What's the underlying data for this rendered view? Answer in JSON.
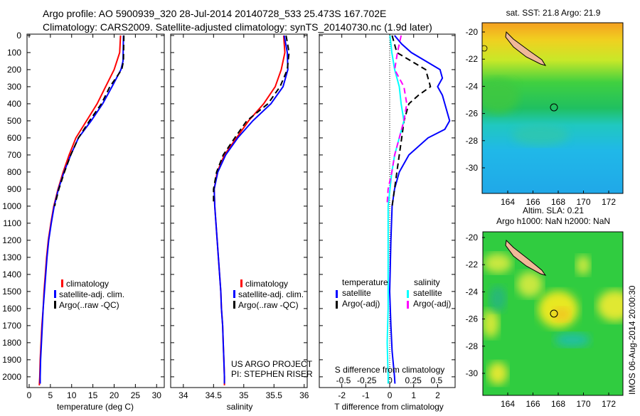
{
  "title": {
    "line1": "Argo profile: AO 5900939_320 28-Jul-2014 20140728_533 25.473S 167.702E",
    "line2": "Climatology: CARS2009. Satellite-adjusted climatology: synTS_20140730.nc (1.9d later)"
  },
  "depth_ticks": [
    "0",
    "100",
    "200",
    "300",
    "400",
    "500",
    "600",
    "700",
    "800",
    "900",
    "1000",
    "1100",
    "1200",
    "1300",
    "1400",
    "1500",
    "1600",
    "1700",
    "1800",
    "1900",
    "2000"
  ],
  "colors": {
    "climatology": "#ff0000",
    "satellite": "#0000ff",
    "argo": "#000000",
    "sal_satellite": "#00ffff",
    "sal_argo": "#ff00ff"
  },
  "project": {
    "line1": "US ARGO PROJECT",
    "line2": "PI: STEPHEN RISER"
  },
  "chart_data": [
    {
      "type": "line",
      "name": "temperature",
      "xlabel": "temperature (deg C)",
      "ylabel": "depth",
      "xlim": [
        -0.5,
        31.8
      ],
      "ylim": [
        -8,
        2063
      ],
      "xticks": [
        0,
        5,
        10,
        15,
        20,
        25,
        30
      ],
      "xtick_labels": [
        "0",
        "5",
        "10",
        "15",
        "20",
        "25",
        "30"
      ],
      "legend": [
        "climatology",
        "satellite-adj. clim.",
        "Argo(..raw -QC)"
      ],
      "series": [
        {
          "name": "climatology",
          "color": "#ff0000",
          "dash": false,
          "points": [
            [
              21.5,
              0
            ],
            [
              21.3,
              100
            ],
            [
              20,
              200
            ],
            [
              18,
              300
            ],
            [
              16,
              400
            ],
            [
              13.5,
              500
            ],
            [
              11,
              600
            ],
            [
              9.4,
              700
            ],
            [
              8,
              800
            ],
            [
              6.8,
              900
            ],
            [
              5.8,
              1000
            ],
            [
              5.1,
              1100
            ],
            [
              4.5,
              1200
            ],
            [
              4.1,
              1300
            ],
            [
              3.8,
              1400
            ],
            [
              3.5,
              1500
            ],
            [
              3.3,
              1600
            ],
            [
              3.0,
              1700
            ],
            [
              2.8,
              1800
            ],
            [
              2.6,
              1900
            ],
            [
              2.5,
              2000
            ],
            [
              2.4,
              2050
            ]
          ]
        },
        {
          "name": "satellite-adj. clim.",
          "color": "#0000ff",
          "dash": false,
          "points": [
            [
              22.2,
              0
            ],
            [
              22.1,
              150
            ],
            [
              21.6,
              200
            ],
            [
              19.5,
              300
            ],
            [
              17.3,
              400
            ],
            [
              14.6,
              500
            ],
            [
              11.6,
              600
            ],
            [
              9.8,
              700
            ],
            [
              8.2,
              800
            ],
            [
              6.9,
              900
            ],
            [
              5.9,
              1000
            ],
            [
              5.2,
              1100
            ],
            [
              4.6,
              1200
            ],
            [
              4.2,
              1300
            ],
            [
              3.9,
              1400
            ],
            [
              3.6,
              1500
            ],
            [
              3.3,
              1600
            ],
            [
              3.1,
              1700
            ],
            [
              2.9,
              1800
            ],
            [
              2.7,
              1900
            ],
            [
              2.6,
              2000
            ],
            [
              2.6,
              2040
            ]
          ]
        },
        {
          "name": "Argo(..raw -QC)",
          "color": "#000000",
          "dash": true,
          "points": [
            [
              22.3,
              0
            ],
            [
              22.2,
              150
            ],
            [
              21.8,
              200
            ],
            [
              19,
              300
            ],
            [
              17,
              400
            ],
            [
              14.2,
              500
            ],
            [
              11.6,
              600
            ],
            [
              9.8,
              700
            ],
            [
              8.3,
              800
            ],
            [
              7,
              900
            ],
            [
              6,
              1000
            ]
          ]
        }
      ]
    },
    {
      "type": "line",
      "name": "salinity",
      "xlabel": "salinity",
      "ylabel": "depth",
      "xlim": [
        33.79,
        36.05
      ],
      "ylim": [
        -8,
        2063
      ],
      "xticks": [
        34,
        34.5,
        35,
        35.5,
        36
      ],
      "xtick_labels": [
        "34",
        "34.5",
        "35",
        "35.5",
        "36"
      ],
      "legend": [
        "climatology",
        "satellite-adj. clim.",
        "Argo(..raw -QC)"
      ],
      "series": [
        {
          "name": "climatology",
          "color": "#ff0000",
          "dash": false,
          "points": [
            [
              35.66,
              0
            ],
            [
              35.68,
              100
            ],
            [
              35.62,
              200
            ],
            [
              35.52,
              300
            ],
            [
              35.33,
              400
            ],
            [
              35.08,
              500
            ],
            [
              34.88,
              600
            ],
            [
              34.68,
              700
            ],
            [
              34.56,
              800
            ],
            [
              34.51,
              900
            ],
            [
              34.52,
              1000
            ],
            [
              34.54,
              1100
            ],
            [
              34.56,
              1200
            ],
            [
              34.58,
              1300
            ],
            [
              34.6,
              1400
            ],
            [
              34.62,
              1500
            ],
            [
              34.63,
              1600
            ],
            [
              34.65,
              1700
            ],
            [
              34.66,
              1800
            ],
            [
              34.67,
              1900
            ],
            [
              34.68,
              2000
            ],
            [
              34.68,
              2050
            ]
          ]
        },
        {
          "name": "satellite-adj. clim.",
          "color": "#0000ff",
          "dash": false,
          "points": [
            [
              35.67,
              0
            ],
            [
              35.72,
              100
            ],
            [
              35.73,
              200
            ],
            [
              35.65,
              300
            ],
            [
              35.45,
              400
            ],
            [
              35.15,
              500
            ],
            [
              34.9,
              600
            ],
            [
              34.7,
              700
            ],
            [
              34.57,
              800
            ],
            [
              34.51,
              900
            ],
            [
              34.52,
              1000
            ],
            [
              34.54,
              1100
            ],
            [
              34.56,
              1200
            ],
            [
              34.58,
              1300
            ],
            [
              34.6,
              1400
            ],
            [
              34.62,
              1500
            ],
            [
              34.63,
              1600
            ],
            [
              34.65,
              1700
            ],
            [
              34.66,
              1800
            ],
            [
              34.67,
              1900
            ],
            [
              34.68,
              2000
            ],
            [
              34.68,
              2040
            ]
          ]
        },
        {
          "name": "Argo(..raw -QC)",
          "color": "#000000",
          "dash": true,
          "points": [
            [
              35.7,
              0
            ],
            [
              35.75,
              100
            ],
            [
              35.72,
              200
            ],
            [
              35.6,
              300
            ],
            [
              35.4,
              400
            ],
            [
              35.05,
              500
            ],
            [
              34.85,
              600
            ],
            [
              34.66,
              700
            ],
            [
              34.55,
              800
            ],
            [
              34.5,
              900
            ],
            [
              34.5,
              980
            ]
          ]
        }
      ]
    },
    {
      "type": "line",
      "name": "difference",
      "xlabel": "T difference from climatology",
      "x2label": "S difference from climatology",
      "xlim": [
        -2.94,
        2.73
      ],
      "x2lim": [
        -0.76,
        0.7
      ],
      "ylim": [
        -8,
        2063
      ],
      "xticks": [
        -2,
        -1,
        0,
        1,
        2
      ],
      "xtick_labels": [
        "-2",
        "-1",
        "0",
        "1",
        "2"
      ],
      "x2ticks": [
        -0.5,
        -0.25,
        0,
        0.25,
        0.5
      ],
      "x2tick_labels": [
        "-0.5",
        "-0.25",
        "0",
        "0.25",
        "0.5"
      ],
      "legend_headers": [
        "temperature",
        "salinity"
      ],
      "legend": [
        "satellite",
        "Argo(-adj)",
        "satellite",
        "Argo(-adj)"
      ],
      "series": [
        {
          "name": "T satellite",
          "axis": "T",
          "color": "#0000ff",
          "dash": false,
          "points": [
            [
              0.2,
              0
            ],
            [
              0.5,
              50
            ],
            [
              0.9,
              100
            ],
            [
              1.5,
              150
            ],
            [
              2.1,
              200
            ],
            [
              2.2,
              250
            ],
            [
              2.0,
              300
            ],
            [
              2.2,
              350
            ],
            [
              2.3,
              400
            ],
            [
              2.4,
              450
            ],
            [
              2.5,
              500
            ],
            [
              2.3,
              550
            ],
            [
              1.6,
              600
            ],
            [
              0.8,
              700
            ],
            [
              0.4,
              800
            ],
            [
              0.2,
              900
            ],
            [
              0.1,
              1000
            ],
            [
              0.05,
              1200
            ],
            [
              0.0,
              1500
            ],
            [
              0.05,
              1700
            ],
            [
              0.1,
              1850
            ],
            [
              0.2,
              2000
            ],
            [
              0.22,
              2040
            ]
          ]
        },
        {
          "name": "T Argo(-adj)",
          "axis": "T",
          "color": "#000000",
          "dash": true,
          "points": [
            [
              0.1,
              0
            ],
            [
              0.3,
              100
            ],
            [
              1.5,
              200
            ],
            [
              1.7,
              300
            ],
            [
              1.2,
              350
            ],
            [
              0.8,
              400
            ],
            [
              0.6,
              500
            ],
            [
              0.5,
              600
            ],
            [
              0.4,
              700
            ],
            [
              0.3,
              800
            ],
            [
              0.2,
              900
            ],
            [
              0.1,
              1000
            ]
          ]
        },
        {
          "name": "S satellite",
          "axis": "S",
          "color": "#00ffff",
          "dash": false,
          "points": [
            [
              0,
              0
            ],
            [
              0.02,
              100
            ],
            [
              0.05,
              200
            ],
            [
              0.1,
              300
            ],
            [
              0.12,
              400
            ],
            [
              0.15,
              500
            ],
            [
              0.1,
              600
            ],
            [
              0.05,
              700
            ],
            [
              0.02,
              800
            ],
            [
              0,
              900
            ],
            [
              -0.02,
              1000
            ],
            [
              -0.02,
              1300
            ],
            [
              -0.02,
              1600
            ],
            [
              -0.03,
              1800
            ],
            [
              -0.02,
              2000
            ],
            [
              -0.02,
              2040
            ]
          ]
        },
        {
          "name": "S Argo(-adj)",
          "axis": "S",
          "color": "#ff00ff",
          "dash": true,
          "points": [
            [
              0.12,
              0
            ],
            [
              0.08,
              100
            ],
            [
              0.05,
              200
            ],
            [
              0.15,
              300
            ],
            [
              0.18,
              400
            ],
            [
              0.15,
              500
            ],
            [
              0.1,
              600
            ],
            [
              0.05,
              700
            ],
            [
              0.02,
              800
            ],
            [
              -0.02,
              900
            ],
            [
              -0.03,
              980
            ]
          ]
        }
      ]
    }
  ],
  "map_sst": {
    "title": "sat. SST: 21.8 Argo: 21.9",
    "lon_ticks": [
      "164",
      "166",
      "168",
      "170",
      "172"
    ],
    "lat_ticks": [
      "-20",
      "-22",
      "-24",
      "-26",
      "-28",
      "-30"
    ],
    "argo_lon": 167.7,
    "argo_lat": -25.47
  },
  "map_sla": {
    "title1": "Altim. SLA: 0.21",
    "title2": "Argo h1000: NaN h2000: NaN",
    "lon_ticks": [
      "164",
      "166",
      "168",
      "170",
      "172"
    ],
    "lat_ticks": [
      "-20",
      "-22",
      "-24",
      "-26",
      "-28",
      "-30"
    ],
    "argo_lon": 167.7,
    "argo_lat": -25.47
  },
  "footer": "IMOS 06-Aug-2014 20:00:30"
}
